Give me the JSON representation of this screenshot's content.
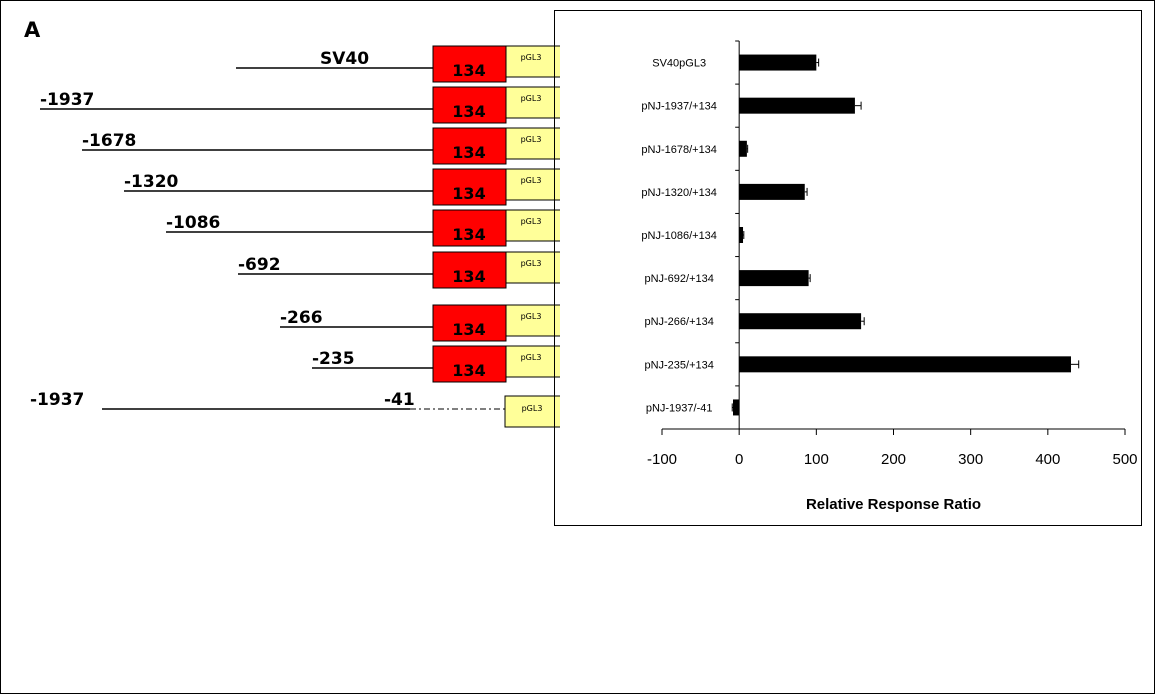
{
  "panel_label": "A",
  "constructs": [
    {
      "left_label": "SV40",
      "mid_label": "",
      "box_label": "134",
      "has_box": true,
      "dashed": false,
      "vector": "pGL3"
    },
    {
      "left_label": "-1937",
      "mid_label": "",
      "box_label": "134",
      "has_box": true,
      "dashed": false,
      "vector": "pGL3"
    },
    {
      "left_label": "-1678",
      "mid_label": "",
      "box_label": "134",
      "has_box": true,
      "dashed": false,
      "vector": "pGL3"
    },
    {
      "left_label": "-1320",
      "mid_label": "",
      "box_label": "134",
      "has_box": true,
      "dashed": false,
      "vector": "pGL3"
    },
    {
      "left_label": "-1086",
      "mid_label": "",
      "box_label": "134",
      "has_box": true,
      "dashed": false,
      "vector": "pGL3"
    },
    {
      "left_label": "-692",
      "mid_label": "",
      "box_label": "134",
      "has_box": true,
      "dashed": false,
      "vector": "pGL3"
    },
    {
      "left_label": "-266",
      "mid_label": "",
      "box_label": "134",
      "has_box": true,
      "dashed": false,
      "vector": "pGL3"
    },
    {
      "left_label": "-235",
      "mid_label": "",
      "box_label": "134",
      "has_box": true,
      "dashed": false,
      "vector": "pGL3"
    },
    {
      "left_label": "-1937",
      "mid_label": "-41",
      "box_label": "",
      "has_box": false,
      "dashed": true,
      "vector": "pGL3"
    }
  ],
  "colors": {
    "exon_box": "#ff0000",
    "vector_box": "#ffff99",
    "bar": "#000000"
  },
  "chart_data": {
    "type": "bar",
    "orientation": "horizontal",
    "categories": [
      "SV40pGL3",
      "pNJ-1937/+134",
      "pNJ-1678/+134",
      "pNJ-1320/+134",
      "pNJ-1086/+134",
      "pNJ-692/+134",
      "pNJ-266/+134",
      "pNJ-235/+134",
      "pNJ-1937/-41"
    ],
    "values": [
      100,
      150,
      10,
      85,
      5,
      90,
      158,
      430,
      -8
    ],
    "errors": [
      3,
      8,
      1,
      3,
      1,
      2,
      4,
      10,
      1
    ],
    "xlabel": "Relative Response Ratio",
    "ylabel": "",
    "title": "",
    "xlim": [
      -100,
      500
    ],
    "xticks": [
      -100,
      0,
      100,
      200,
      300,
      400,
      500
    ],
    "grid": false,
    "legend": "none"
  }
}
